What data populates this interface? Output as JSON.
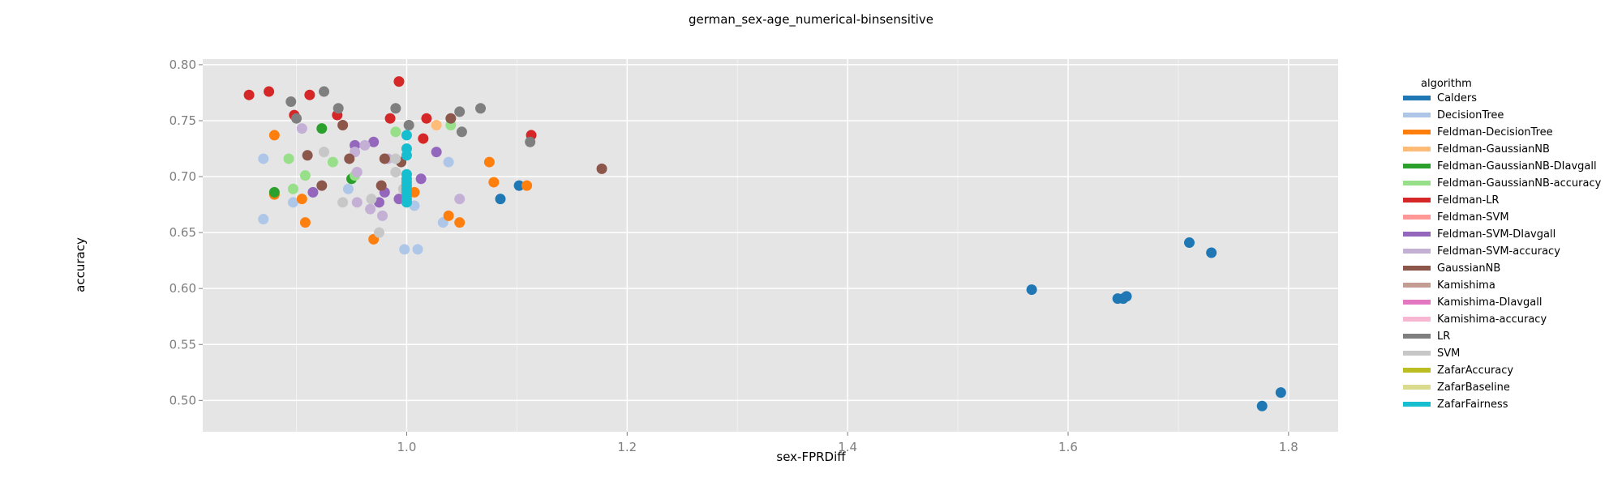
{
  "chart_data": {
    "type": "scatter",
    "title": "german_sex-age_numerical-binsensitive",
    "xlabel": "sex-FPRDiff",
    "ylabel": "accuracy",
    "xlim": [
      0.815,
      1.845
    ],
    "ylim": [
      0.472,
      0.805
    ],
    "xticks": [
      "1.0",
      "1.2",
      "1.4",
      "1.6",
      "1.8"
    ],
    "yticks": [
      "0.50",
      "0.55",
      "0.60",
      "0.65",
      "0.70",
      "0.75",
      "0.80"
    ],
    "grid": true,
    "legend_title": "algorithm",
    "legend_position": "right",
    "series": [
      {
        "name": "Calders",
        "color": "#1f77b4",
        "points": [
          [
            1.085,
            0.68
          ],
          [
            1.102,
            0.692
          ],
          [
            1.567,
            0.599
          ],
          [
            1.645,
            0.591
          ],
          [
            1.65,
            0.591
          ],
          [
            1.653,
            0.593
          ],
          [
            1.71,
            0.641
          ],
          [
            1.73,
            0.632
          ],
          [
            1.776,
            0.495
          ],
          [
            1.793,
            0.507
          ]
        ]
      },
      {
        "name": "DecisionTree",
        "color": "#aec7e8",
        "points": [
          [
            0.87,
            0.716
          ],
          [
            0.87,
            0.662
          ],
          [
            0.897,
            0.677
          ],
          [
            0.947,
            0.689
          ],
          [
            0.998,
            0.635
          ],
          [
            1.01,
            0.635
          ],
          [
            1.007,
            0.674
          ],
          [
            1.033,
            0.659
          ],
          [
            1.038,
            0.713
          ]
        ]
      },
      {
        "name": "Feldman-DecisionTree",
        "color": "#ff7f0e",
        "points": [
          [
            0.88,
            0.737
          ],
          [
            0.88,
            0.684
          ],
          [
            0.905,
            0.68
          ],
          [
            0.908,
            0.659
          ],
          [
            0.97,
            0.644
          ],
          [
            1.007,
            0.686
          ],
          [
            1.038,
            0.665
          ],
          [
            1.048,
            0.659
          ],
          [
            1.075,
            0.713
          ],
          [
            1.079,
            0.695
          ],
          [
            1.109,
            0.692
          ]
        ]
      },
      {
        "name": "Feldman-GaussianNB",
        "color": "#ffbb78",
        "points": [
          [
            1.027,
            0.746
          ]
        ]
      },
      {
        "name": "Feldman-GaussianNB-DIavgall",
        "color": "#2ca02c",
        "points": [
          [
            0.88,
            0.686
          ],
          [
            0.923,
            0.743
          ],
          [
            0.95,
            0.698
          ]
        ]
      },
      {
        "name": "Feldman-GaussianNB-accuracy",
        "color": "#98df8a",
        "points": [
          [
            0.893,
            0.716
          ],
          [
            0.897,
            0.689
          ],
          [
            0.908,
            0.701
          ],
          [
            0.933,
            0.713
          ],
          [
            0.953,
            0.701
          ],
          [
            0.99,
            0.74
          ],
          [
            1.04,
            0.746
          ]
        ]
      },
      {
        "name": "Feldman-LR",
        "color": "#d62728",
        "points": [
          [
            0.857,
            0.773
          ],
          [
            0.875,
            0.776
          ],
          [
            0.898,
            0.755
          ],
          [
            0.912,
            0.773
          ],
          [
            0.937,
            0.755
          ],
          [
            0.985,
            0.752
          ],
          [
            0.993,
            0.785
          ],
          [
            1.018,
            0.752
          ],
          [
            1.015,
            0.734
          ],
          [
            1.113,
            0.737
          ]
        ]
      },
      {
        "name": "Feldman-SVM-DIavgall",
        "color": "#9467bd",
        "points": [
          [
            0.915,
            0.686
          ],
          [
            0.953,
            0.728
          ],
          [
            0.97,
            0.731
          ],
          [
            0.975,
            0.677
          ],
          [
            0.98,
            0.686
          ],
          [
            0.993,
            0.68
          ],
          [
            1.013,
            0.698
          ],
          [
            1.027,
            0.722
          ]
        ]
      },
      {
        "name": "Feldman-SVM-accuracy",
        "color": "#c5b0d5",
        "points": [
          [
            0.905,
            0.743
          ],
          [
            0.953,
            0.722
          ],
          [
            0.955,
            0.704
          ],
          [
            0.955,
            0.677
          ],
          [
            0.962,
            0.728
          ],
          [
            0.967,
            0.671
          ],
          [
            0.978,
            0.665
          ],
          [
            0.983,
            0.716
          ],
          [
            1.048,
            0.68
          ]
        ]
      },
      {
        "name": "GaussianNB",
        "color": "#8c564b",
        "points": [
          [
            0.91,
            0.719
          ],
          [
            0.923,
            0.692
          ],
          [
            0.942,
            0.746
          ],
          [
            0.948,
            0.716
          ],
          [
            0.977,
            0.692
          ],
          [
            0.98,
            0.716
          ],
          [
            0.995,
            0.713
          ],
          [
            1.04,
            0.752
          ],
          [
            1.177,
            0.707
          ]
        ]
      },
      {
        "name": "LR",
        "color": "#7f7f7f",
        "points": [
          [
            0.895,
            0.767
          ],
          [
            0.9,
            0.752
          ],
          [
            0.925,
            0.776
          ],
          [
            0.938,
            0.761
          ],
          [
            0.99,
            0.761
          ],
          [
            1.002,
            0.746
          ],
          [
            1.048,
            0.758
          ],
          [
            1.05,
            0.74
          ],
          [
            1.067,
            0.761
          ],
          [
            1.112,
            0.731
          ]
        ]
      },
      {
        "name": "SVM",
        "color": "#c7c7c7",
        "points": [
          [
            0.925,
            0.722
          ],
          [
            0.942,
            0.677
          ],
          [
            0.968,
            0.68
          ],
          [
            0.975,
            0.65
          ],
          [
            0.99,
            0.704
          ],
          [
            0.99,
            0.716
          ],
          [
            0.997,
            0.689
          ]
        ]
      },
      {
        "name": "Kamishima",
        "color": "#c49c94",
        "points": []
      },
      {
        "name": "Kamishima-DIavgall",
        "color": "#e377c2",
        "points": []
      },
      {
        "name": "Kamishima-accuracy",
        "color": "#f7b6d2",
        "points": []
      },
      {
        "name": "Feldman-SVM",
        "color": "#ff9896",
        "points": []
      },
      {
        "name": "ZafarAccuracy",
        "color": "#bcbd22",
        "points": []
      },
      {
        "name": "ZafarBaseline",
        "color": "#dbdb8d",
        "points": []
      },
      {
        "name": "ZafarFairness",
        "color": "#17becf",
        "points": [
          [
            1.0,
            0.737
          ],
          [
            1.0,
            0.725
          ],
          [
            1.0,
            0.719
          ],
          [
            1.0,
            0.702
          ],
          [
            1.0,
            0.698
          ],
          [
            1.0,
            0.695
          ],
          [
            1.0,
            0.692
          ],
          [
            1.0,
            0.689
          ],
          [
            1.0,
            0.686
          ],
          [
            1.0,
            0.683
          ],
          [
            1.0,
            0.68
          ],
          [
            1.0,
            0.677
          ]
        ]
      }
    ],
    "legend_entries": [
      {
        "name": "Calders",
        "color": "#1f77b4"
      },
      {
        "name": "DecisionTree",
        "color": "#aec7e8"
      },
      {
        "name": "Feldman-DecisionTree",
        "color": "#ff7f0e"
      },
      {
        "name": "Feldman-GaussianNB",
        "color": "#ffbb78"
      },
      {
        "name": "Feldman-GaussianNB-DIavgall",
        "color": "#2ca02c"
      },
      {
        "name": "Feldman-GaussianNB-accuracy",
        "color": "#98df8a"
      },
      {
        "name": "Feldman-LR",
        "color": "#d62728"
      },
      {
        "name": "Feldman-SVM",
        "color": "#ff9896"
      },
      {
        "name": "Feldman-SVM-DIavgall",
        "color": "#9467bd"
      },
      {
        "name": "Feldman-SVM-accuracy",
        "color": "#c5b0d5"
      },
      {
        "name": "GaussianNB",
        "color": "#8c564b"
      },
      {
        "name": "Kamishima",
        "color": "#c49c94"
      },
      {
        "name": "Kamishima-DIavgall",
        "color": "#e377c2"
      },
      {
        "name": "Kamishima-accuracy",
        "color": "#f7b6d2"
      },
      {
        "name": "LR",
        "color": "#7f7f7f"
      },
      {
        "name": "SVM",
        "color": "#c7c7c7"
      },
      {
        "name": "ZafarAccuracy",
        "color": "#bcbd22"
      },
      {
        "name": "ZafarBaseline",
        "color": "#dbdb8d"
      },
      {
        "name": "ZafarFairness",
        "color": "#17becf"
      }
    ]
  }
}
